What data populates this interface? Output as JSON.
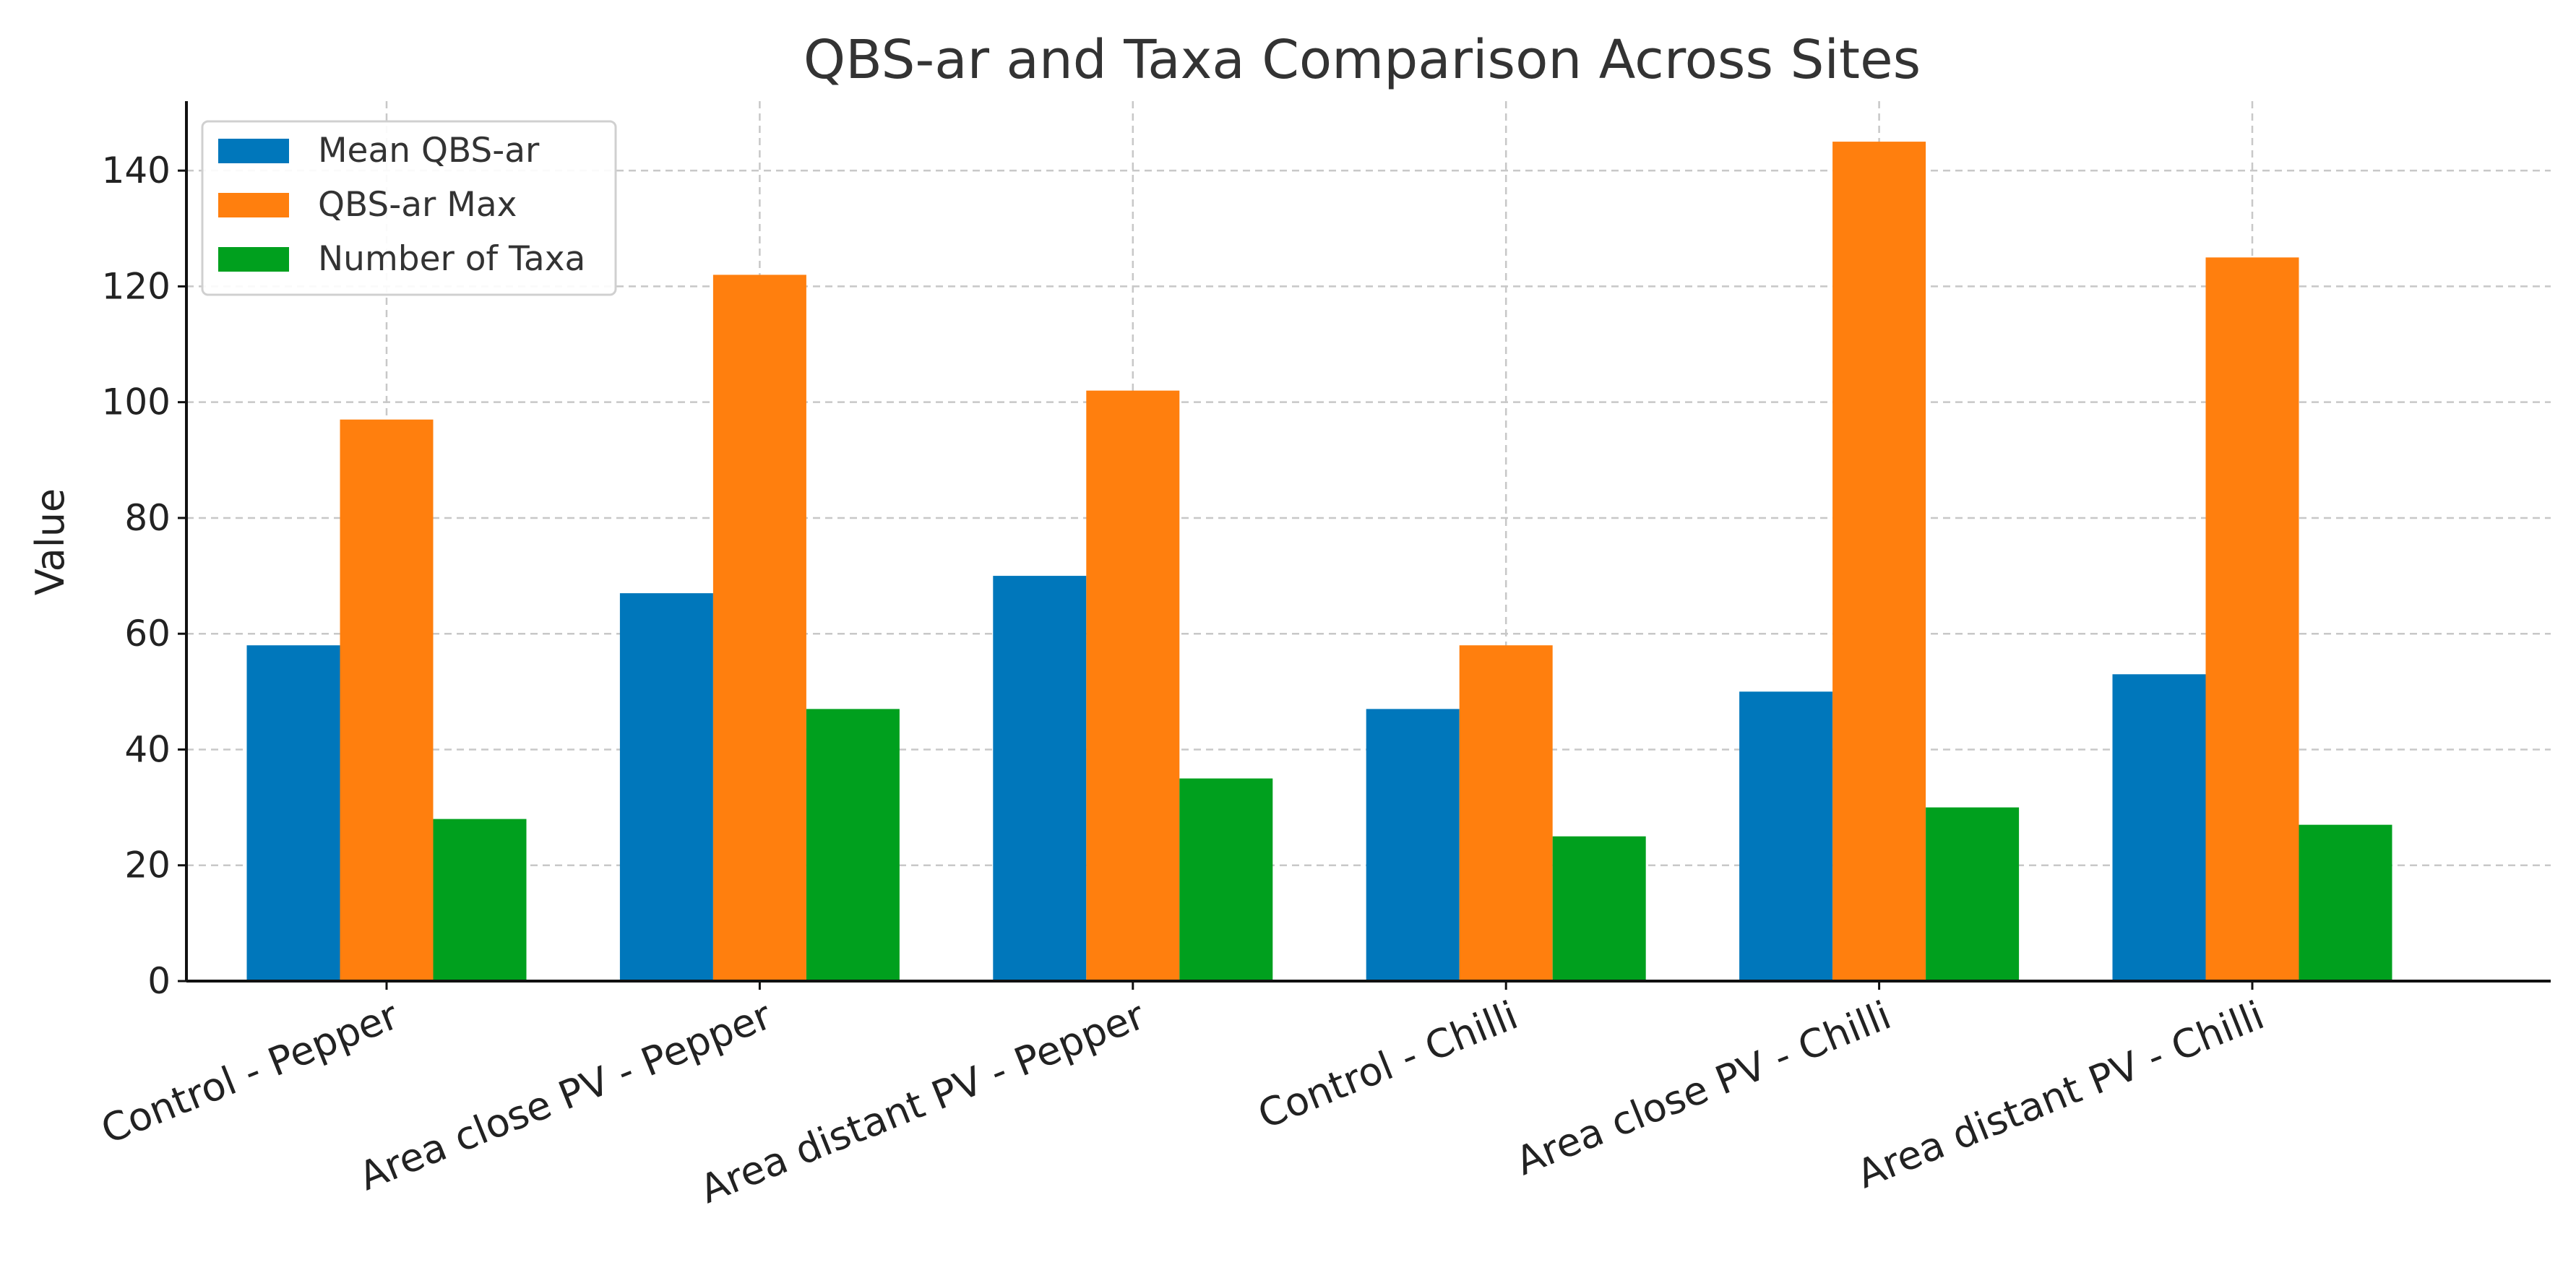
{
  "chart_data": {
    "type": "bar",
    "title": "QBS-ar and Taxa Comparison Across Sites",
    "xlabel": "",
    "ylabel": "Value",
    "ylim": [
      0,
      152
    ],
    "yticks": [
      0,
      20,
      40,
      60,
      80,
      100,
      120,
      140
    ],
    "grid": true,
    "legend_position": "top-left",
    "categories": [
      "Control - Pepper",
      "Area close PV - Pepper",
      "Area distant PV - Pepper",
      "Control - Chilli",
      "Area close PV - Chilli",
      "Area distant PV - Chilli"
    ],
    "series": [
      {
        "name": "Mean QBS-ar",
        "color": "#0077bb",
        "values": [
          58,
          67,
          70,
          47,
          50,
          53
        ]
      },
      {
        "name": "QBS-ar Max",
        "color": "#ff7f0e",
        "values": [
          97,
          122,
          102,
          58,
          145,
          125
        ]
      },
      {
        "name": "Number of Taxa",
        "color": "#00a01e",
        "values": [
          28,
          47,
          35,
          25,
          30,
          27
        ]
      }
    ]
  }
}
